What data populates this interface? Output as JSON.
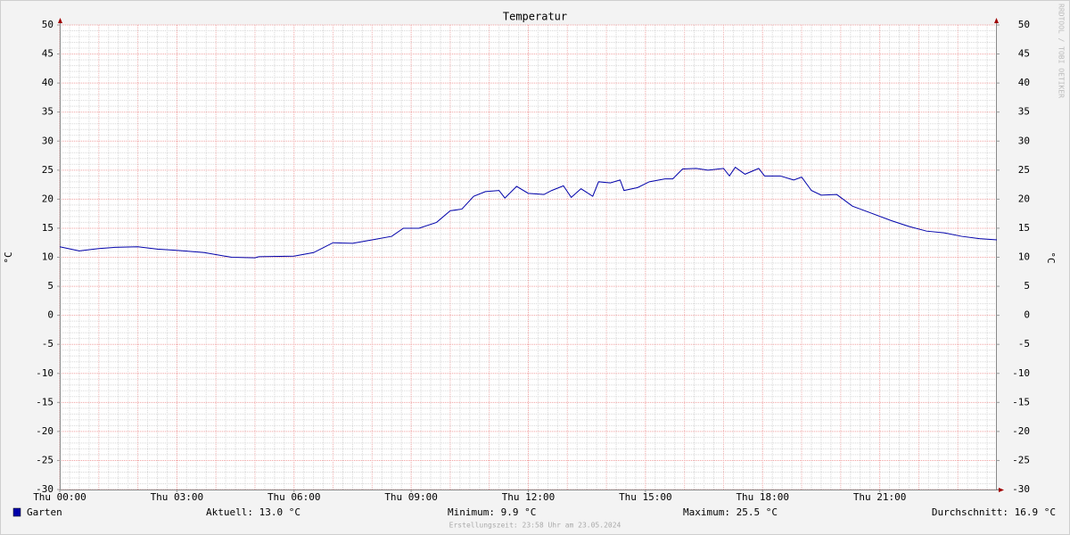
{
  "chart_data": {
    "type": "line",
    "title": "Temperatur",
    "y_label": "°C",
    "watermark": "RRDTOOL / TOBI OETIKER",
    "x": [
      0,
      0.5,
      1,
      1.4,
      2,
      2.5,
      3,
      3.7,
      4.4,
      5.0,
      5.1,
      6,
      6.5,
      7,
      7.5,
      8,
      8.5,
      8.8,
      9.2,
      9.65,
      10,
      10.3,
      10.6,
      10.9,
      11.25,
      11.4,
      11.7,
      12,
      12.4,
      12.6,
      12.9,
      13.1,
      13.35,
      13.65,
      13.8,
      14.1,
      14.35,
      14.45,
      14.8,
      15.1,
      15.5,
      15.7,
      15.95,
      16.3,
      16.6,
      17,
      17.15,
      17.3,
      17.55,
      17.9,
      18.05,
      18.45,
      18.8,
      19,
      19.25,
      19.5,
      19.9,
      20.3,
      20.7,
      21.3,
      21.75,
      22.2,
      22.65,
      23.1,
      23.55,
      24
    ],
    "series": [
      {
        "name": "Garten",
        "color": "#0000aa",
        "values": [
          11.8,
          11.1,
          11.5,
          11.7,
          11.8,
          11.4,
          11.2,
          10.8,
          10.0,
          9.9,
          10.1,
          10.2,
          10.8,
          12.5,
          12.4,
          13.0,
          13.6,
          15.0,
          15.0,
          16.0,
          18.0,
          18.3,
          20.5,
          21.3,
          21.5,
          20.2,
          22.2,
          21.0,
          20.8,
          21.5,
          22.3,
          20.3,
          21.8,
          20.5,
          23.0,
          22.8,
          23.3,
          21.5,
          22.0,
          23.0,
          23.5,
          23.5,
          25.2,
          25.3,
          25.0,
          25.3,
          24.0,
          25.5,
          24.3,
          25.3,
          24.0,
          24.0,
          23.3,
          23.8,
          21.5,
          20.7,
          20.8,
          18.8,
          17.8,
          16.3,
          15.3,
          14.5,
          14.2,
          13.6,
          13.2,
          13.0
        ]
      }
    ],
    "xlim": [
      0,
      24
    ],
    "xticks": [
      {
        "value": 0,
        "label": "Thu 00:00"
      },
      {
        "value": 3,
        "label": "Thu 03:00"
      },
      {
        "value": 6,
        "label": "Thu 06:00"
      },
      {
        "value": 9,
        "label": "Thu 09:00"
      },
      {
        "value": 12,
        "label": "Thu 12:00"
      },
      {
        "value": 15,
        "label": "Thu 15:00"
      },
      {
        "value": 18,
        "label": "Thu 18:00"
      },
      {
        "value": 21,
        "label": "Thu 21:00"
      }
    ],
    "ylim": [
      -30,
      50
    ],
    "yticks": [
      -30,
      -25,
      -20,
      -15,
      -10,
      -5,
      0,
      5,
      10,
      15,
      20,
      25,
      30,
      35,
      40,
      45,
      50
    ],
    "grid": true,
    "stats": [
      "Aktuell: 13.0 °C",
      "Minimum: 9.9 °C",
      "Maximum: 25.5 °C",
      "Durchschnitt: 16.9 °C"
    ],
    "footer": "Erstellungszeit: 23:58 Uhr am 23.05.2024"
  }
}
